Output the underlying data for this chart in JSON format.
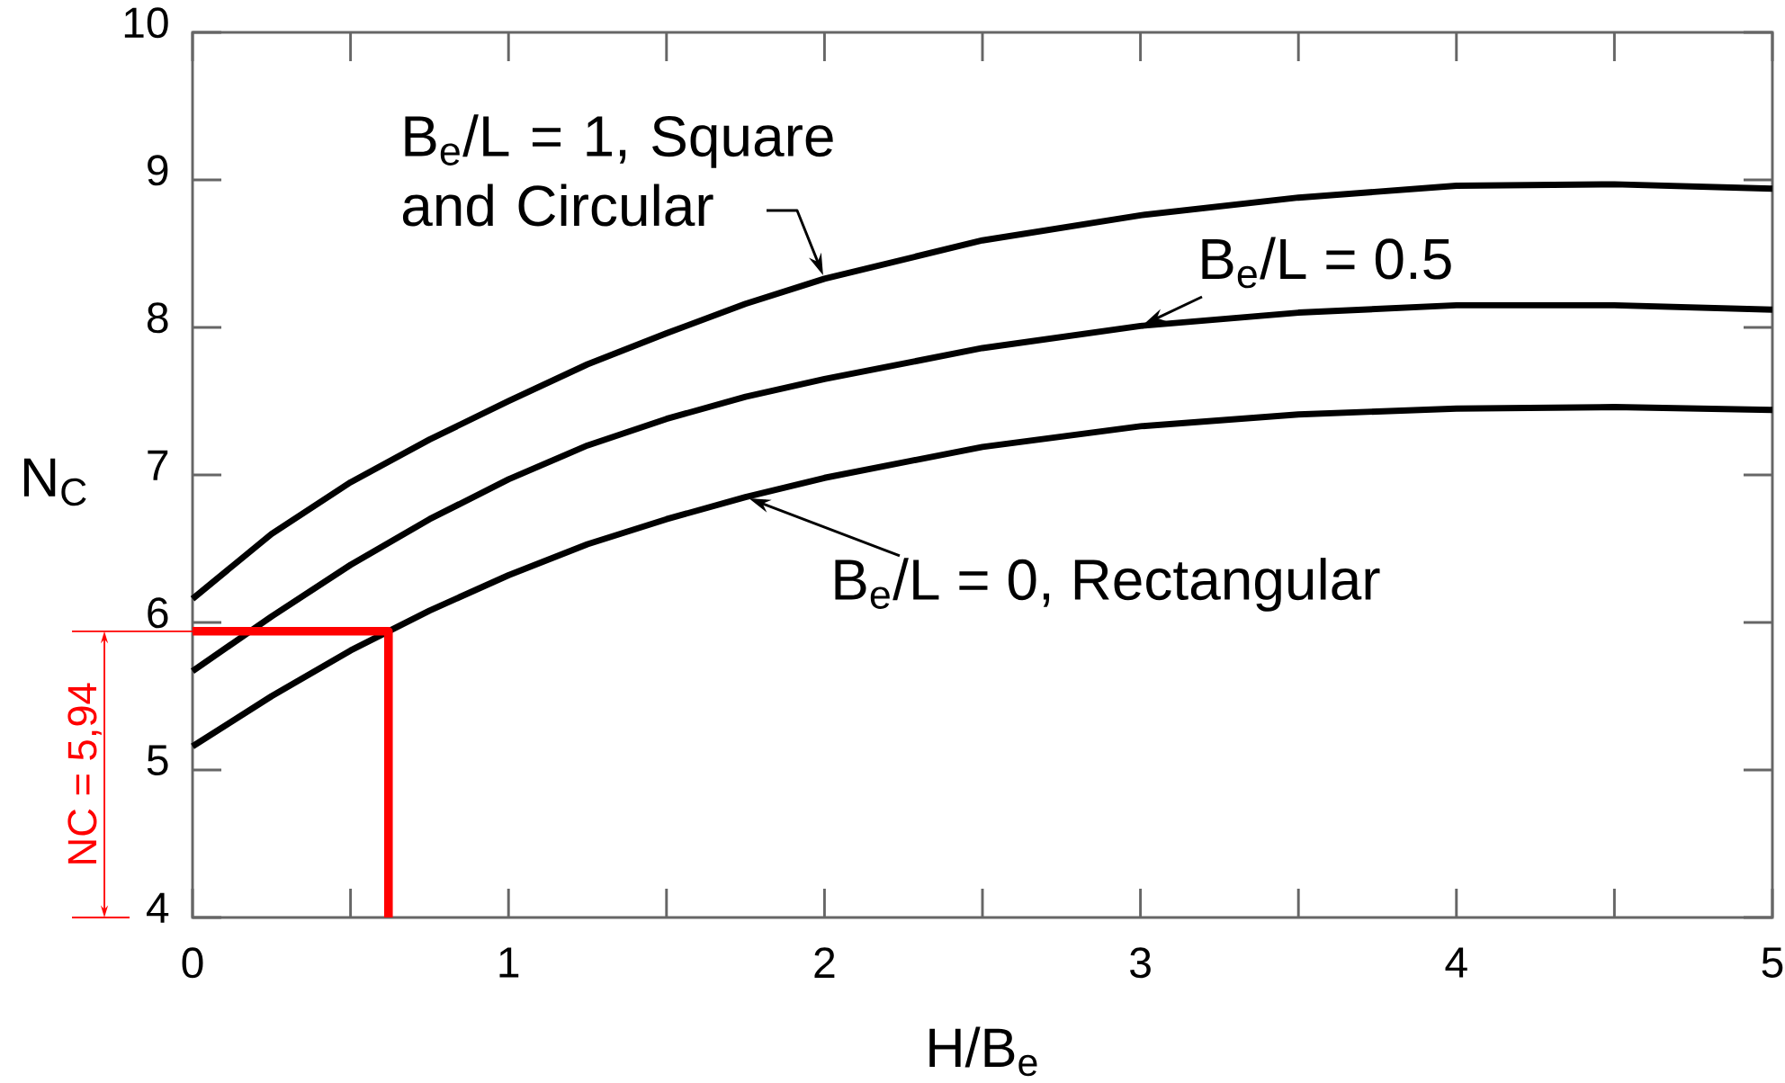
{
  "chart_data": {
    "type": "line",
    "xlabel": "H/B$_{e}$",
    "ylabel": "N$_{C}$",
    "x": [
      0,
      0.25,
      0.5,
      0.75,
      1,
      1.25,
      1.5,
      1.75,
      2,
      2.5,
      3,
      3.5,
      4,
      4.5,
      5
    ],
    "series": [
      {
        "name": "B$_{e}$/L = 1, Square and Circular",
        "color": "#000000",
        "values": [
          6.16,
          6.6,
          6.95,
          7.24,
          7.5,
          7.75,
          7.96,
          8.16,
          8.33,
          8.59,
          8.76,
          8.88,
          8.96,
          8.97,
          8.94
        ]
      },
      {
        "name": "B$_{e}$/L = 0.5",
        "color": "#000000",
        "values": [
          5.67,
          6.04,
          6.39,
          6.7,
          6.97,
          7.2,
          7.38,
          7.53,
          7.65,
          7.86,
          8.01,
          8.1,
          8.15,
          8.15,
          8.12
        ]
      },
      {
        "name": "B$_{e}$/L = 0, Rectangular",
        "color": "#000000",
        "values": [
          5.16,
          5.5,
          5.81,
          6.08,
          6.32,
          6.53,
          6.7,
          6.85,
          6.98,
          7.19,
          7.33,
          7.41,
          7.45,
          7.46,
          7.44
        ]
      },
      {
        "type": "step",
        "color": "#ff0000",
        "x": [
          0,
          0.62
        ],
        "values": [
          5.94,
          4
        ]
      }
    ],
    "annotations": [
      "NC = 5,94"
    ],
    "xlim": [
      0,
      5
    ],
    "ylim": [
      4,
      10
    ],
    "xticks": [
      0,
      {
        "value": 0.5,
        "label": null
      },
      1,
      {
        "value": 1.5,
        "label": null
      },
      2,
      {
        "value": 2.5,
        "label": null
      },
      3,
      {
        "value": 3.5,
        "label": null
      },
      4,
      {
        "value": 4.5,
        "label": null
      },
      5
    ],
    "yticks": [
      4,
      5,
      6,
      7,
      8,
      9,
      10
    ]
  }
}
